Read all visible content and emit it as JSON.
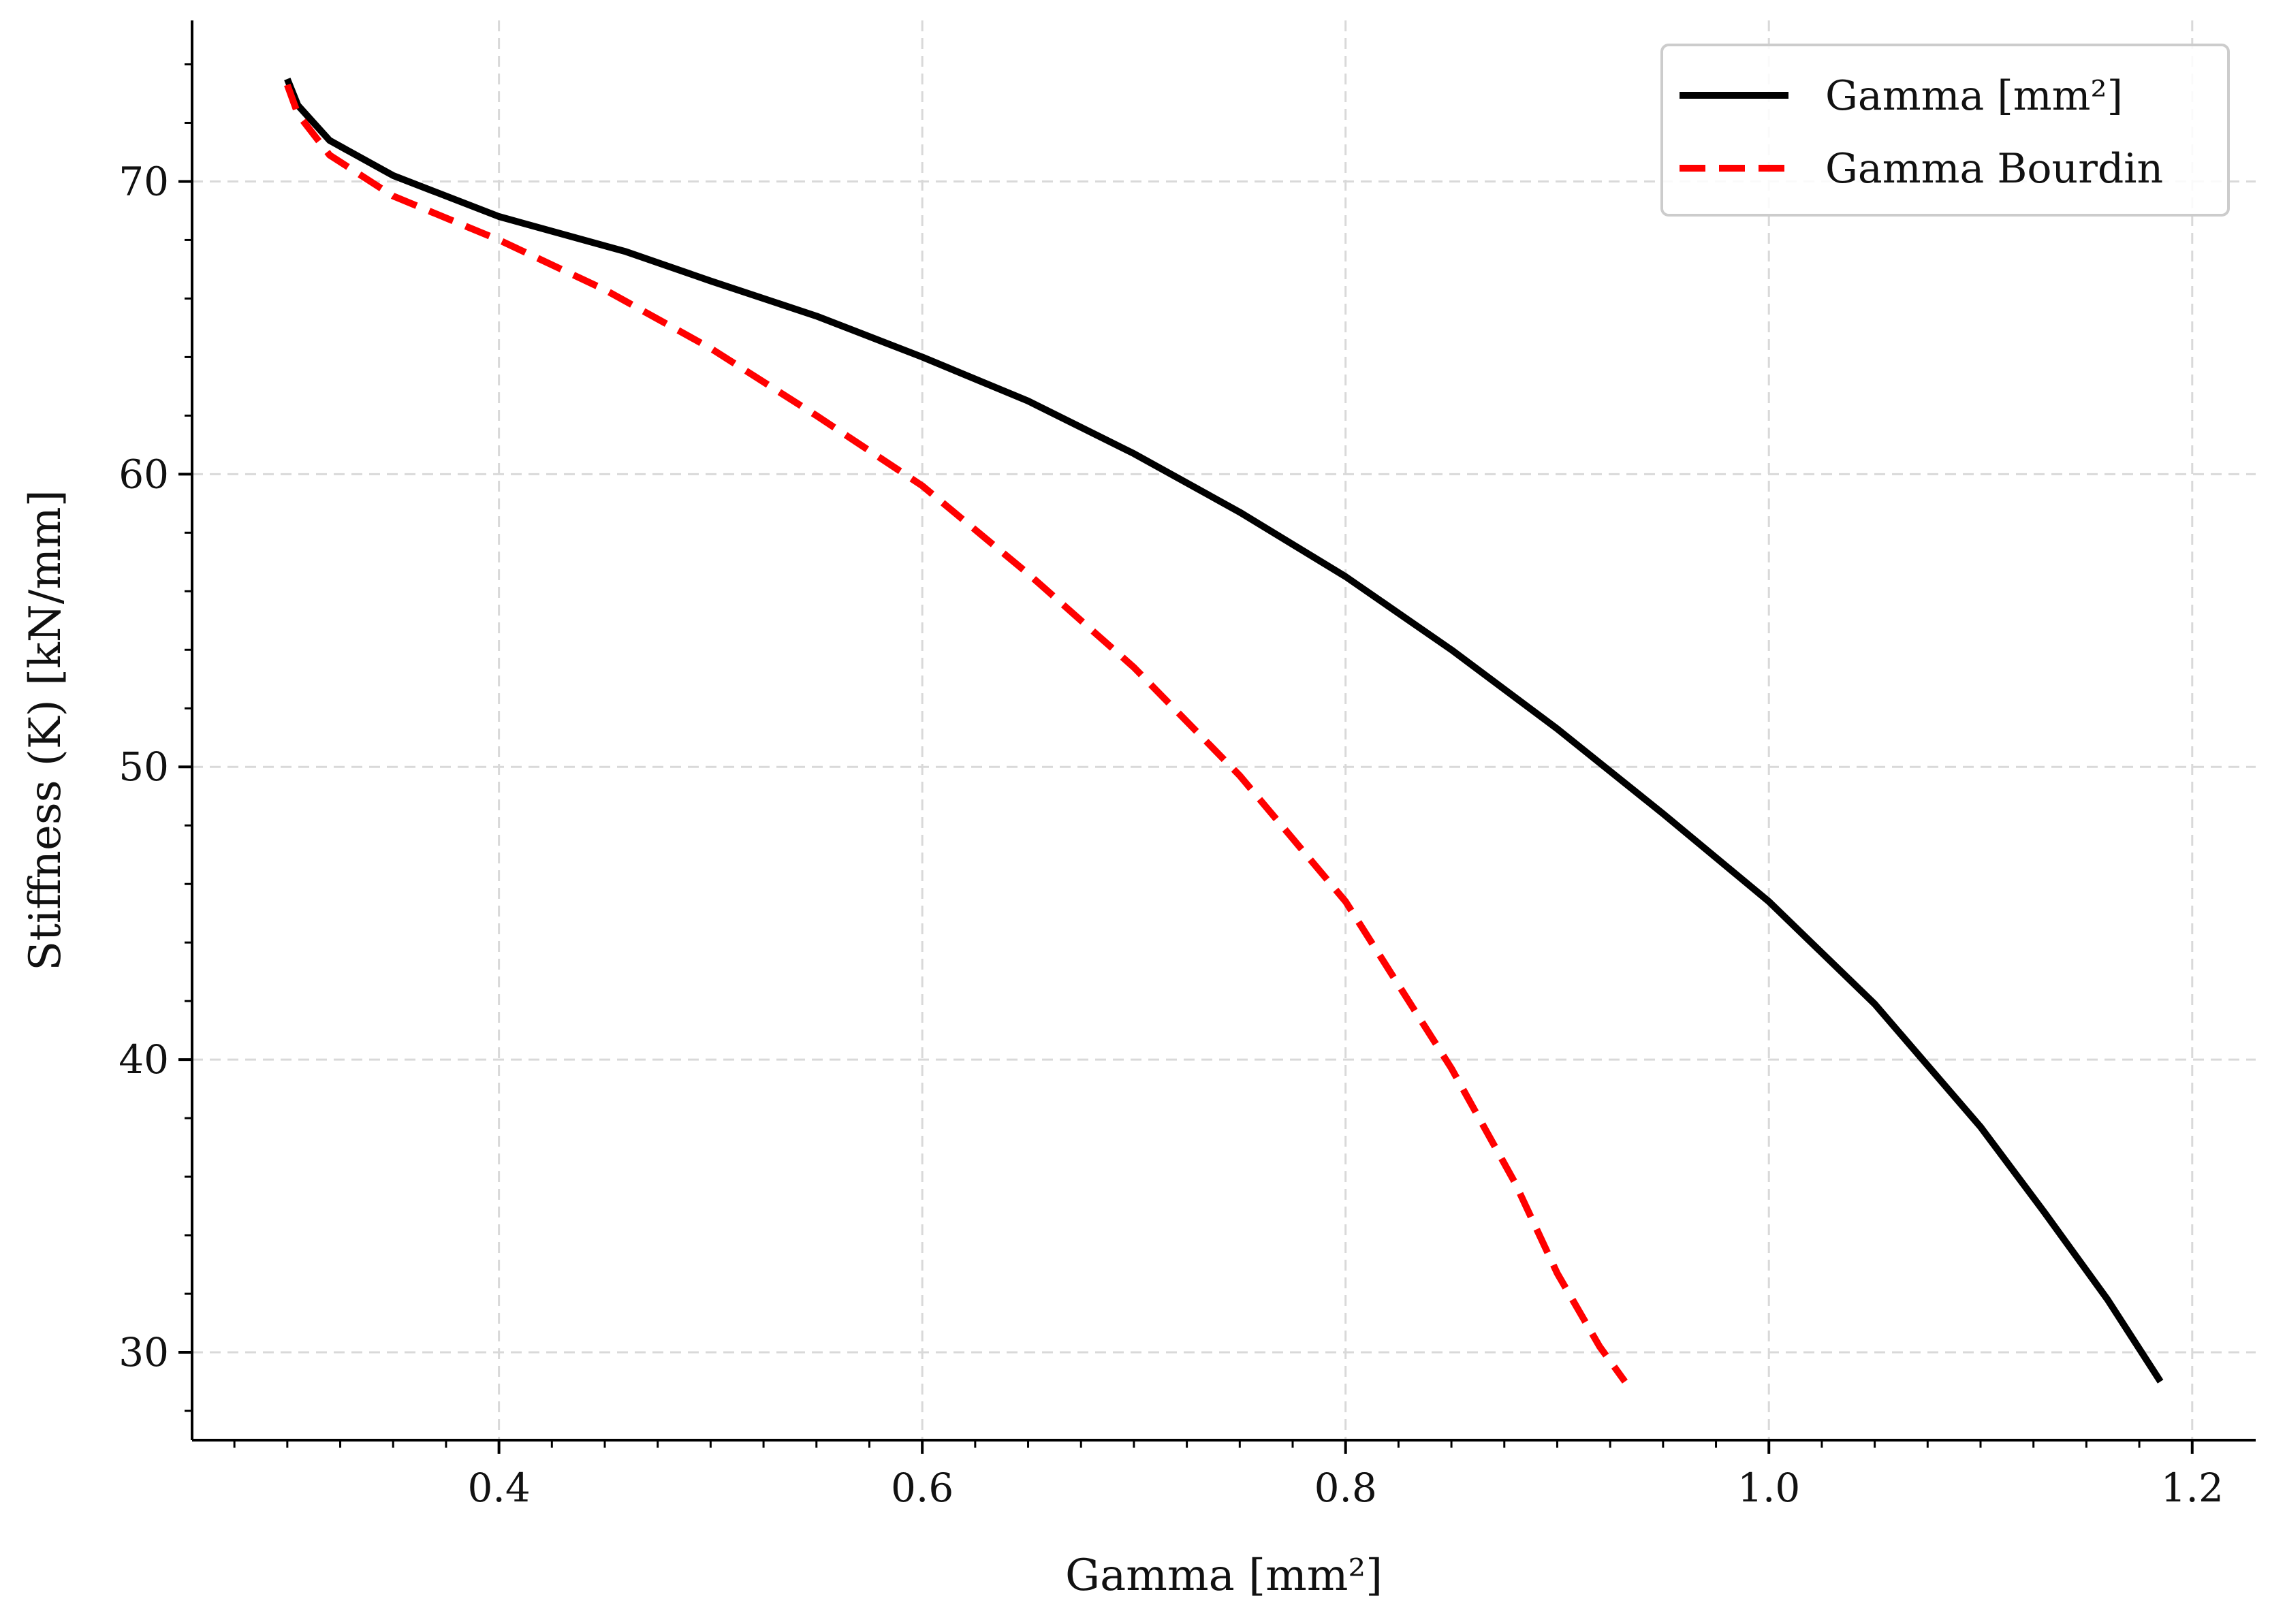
{
  "chart_data": {
    "type": "line",
    "xlabel": "Gamma [mm²]",
    "ylabel": "Stiffness (K) [kN/mm]",
    "xlim": [
      0.255,
      1.23
    ],
    "ylim": [
      27.0,
      75.5
    ],
    "xticks": [
      0.4,
      0.6,
      0.8,
      1.0,
      1.2
    ],
    "xtick_labels": [
      "0.4",
      "0.6",
      "0.8",
      "1.0",
      "1.2"
    ],
    "yticks": [
      30,
      40,
      50,
      60,
      70
    ],
    "ytick_labels": [
      "30",
      "40",
      "50",
      "60",
      "70"
    ],
    "grid": true,
    "legend_position": "top-right",
    "series": [
      {
        "name": "Gamma [mm²]",
        "color": "#000000",
        "style": "solid",
        "x": [
          0.3,
          0.305,
          0.32,
          0.35,
          0.4,
          0.46,
          0.5,
          0.55,
          0.6,
          0.65,
          0.7,
          0.75,
          0.8,
          0.85,
          0.9,
          0.95,
          1.0,
          1.05,
          1.1,
          1.13,
          1.16,
          1.185
        ],
        "y": [
          73.5,
          72.6,
          71.4,
          70.2,
          68.8,
          67.6,
          66.6,
          65.4,
          64.0,
          62.5,
          60.7,
          58.7,
          56.5,
          54.0,
          51.3,
          48.4,
          45.4,
          41.9,
          37.7,
          34.8,
          31.8,
          29.0
        ]
      },
      {
        "name": "Gamma Bourdin",
        "color": "#ff0000",
        "style": "dashed",
        "x": [
          0.3,
          0.305,
          0.32,
          0.35,
          0.4,
          0.45,
          0.5,
          0.55,
          0.6,
          0.65,
          0.7,
          0.75,
          0.8,
          0.85,
          0.88,
          0.9,
          0.92,
          0.932
        ],
        "y": [
          73.3,
          72.3,
          70.9,
          69.5,
          68.0,
          66.3,
          64.3,
          62.0,
          59.6,
          56.6,
          53.4,
          49.7,
          45.4,
          39.7,
          35.8,
          32.7,
          30.2,
          29.0
        ]
      }
    ]
  }
}
